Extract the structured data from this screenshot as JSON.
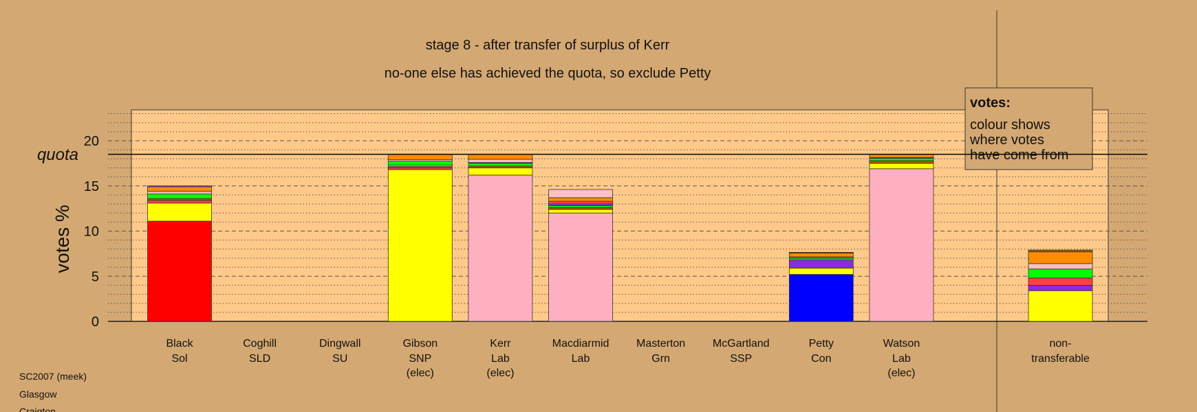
{
  "page": {
    "background": "#D4A872",
    "plot_background": "#FFC98A"
  },
  "footer": {
    "line1": "SC2007 (meek)",
    "line2": "Glasgow",
    "line3": "Craigton"
  },
  "legend": {
    "title": "votes:",
    "line1": "colour shows",
    "line2": "where votes",
    "line3": "have come from"
  },
  "chart_data": {
    "type": "bar",
    "stacked": true,
    "title": "stage 8 - after transfer of surplus of Kerr",
    "subtitle": "no-one else has achieved the quota, so exclude Petty",
    "ylabel": "votes %",
    "ylim": [
      0,
      23.5
    ],
    "yticks": [
      0,
      5,
      10,
      15,
      20
    ],
    "quota": 18.5,
    "quota_label": "quota",
    "colors": {
      "Sol": "#FF0000",
      "SNP": "#FFFF00",
      "Lab": "#FFB0C0",
      "Con": "#0000FF",
      "SLD": "#FF8C00",
      "SSP": "#FF4040",
      "Grn": "#00FF00",
      "SU": "#800080",
      "Other": "#A06000",
      "Misc": "#8A2BE2",
      "Pale": "#FFC0C0"
    },
    "categories": [
      {
        "name": "Black",
        "party": "Sol",
        "elected": "",
        "segments": [
          {
            "source": "Sol",
            "value": 11.1
          },
          {
            "source": "SNP",
            "value": 2.0
          },
          {
            "source": "SSP",
            "value": 0.3
          },
          {
            "source": "Other",
            "value": 0.2
          },
          {
            "source": "Grn",
            "value": 0.5
          },
          {
            "source": "Lab",
            "value": 0.3
          },
          {
            "source": "SLD",
            "value": 0.5
          },
          {
            "source": "Misc",
            "value": 0.1
          }
        ]
      },
      {
        "name": "Coghill",
        "party": "SLD",
        "elected": "",
        "segments": []
      },
      {
        "name": "Dingwall",
        "party": "SU",
        "elected": "",
        "segments": []
      },
      {
        "name": "Gibson",
        "party": "SNP",
        "elected": "(elec)",
        "segments": [
          {
            "source": "SNP",
            "value": 16.8
          },
          {
            "source": "SSP",
            "value": 0.2
          },
          {
            "source": "Other",
            "value": 0.15
          },
          {
            "source": "Lab",
            "value": 0.15
          },
          {
            "source": "Grn",
            "value": 0.45
          },
          {
            "source": "Pale",
            "value": 0.15
          },
          {
            "source": "SLD",
            "value": 0.6
          }
        ]
      },
      {
        "name": "Kerr",
        "party": "Lab",
        "elected": "(elec)",
        "segments": [
          {
            "source": "Lab",
            "value": 16.2
          },
          {
            "source": "SNP",
            "value": 0.8
          },
          {
            "source": "Other",
            "value": 0.2
          },
          {
            "source": "Grn",
            "value": 0.3
          },
          {
            "source": "Misc",
            "value": 0.1
          },
          {
            "source": "Pale",
            "value": 0.35
          },
          {
            "source": "SLD",
            "value": 0.55
          }
        ]
      },
      {
        "name": "Macdiarmid",
        "party": "Lab",
        "elected": "",
        "segments": [
          {
            "source": "Lab",
            "value": 12.0
          },
          {
            "source": "SNP",
            "value": 0.4
          },
          {
            "source": "Other",
            "value": 0.2
          },
          {
            "source": "Grn",
            "value": 0.2
          },
          {
            "source": "Misc",
            "value": 0.2
          },
          {
            "source": "SSP",
            "value": 0.3
          },
          {
            "source": "SLD",
            "value": 0.4
          },
          {
            "source": "Pale",
            "value": 0.9
          }
        ]
      },
      {
        "name": "Masterton",
        "party": "Grn",
        "elected": "",
        "segments": []
      },
      {
        "name": "McGartland",
        "party": "SSP",
        "elected": "",
        "segments": []
      },
      {
        "name": "Petty",
        "party": "Con",
        "elected": "",
        "segments": [
          {
            "source": "Con",
            "value": 5.2
          },
          {
            "source": "SNP",
            "value": 0.7
          },
          {
            "source": "Misc",
            "value": 0.9
          },
          {
            "source": "Grn",
            "value": 0.2
          },
          {
            "source": "SSP",
            "value": 0.15
          },
          {
            "source": "SLD",
            "value": 0.4
          },
          {
            "source": "Other",
            "value": 0.1
          }
        ]
      },
      {
        "name": "Watson",
        "party": "Lab",
        "elected": "(elec)",
        "segments": [
          {
            "source": "Lab",
            "value": 16.9
          },
          {
            "source": "SNP",
            "value": 0.6
          },
          {
            "source": "Other",
            "value": 0.3
          },
          {
            "source": "Grn",
            "value": 0.25
          },
          {
            "source": "Misc",
            "value": 0.1
          },
          {
            "source": "SLD",
            "value": 0.35
          }
        ]
      }
    ],
    "nontransferable": {
      "name": "non-",
      "name2": "transferable",
      "segments": [
        {
          "source": "SNP",
          "value": 3.4
        },
        {
          "source": "Misc",
          "value": 0.6
        },
        {
          "source": "SSP",
          "value": 0.8
        },
        {
          "source": "Grn",
          "value": 1.0
        },
        {
          "source": "Pale",
          "value": 0.6
        },
        {
          "source": "SLD",
          "value": 1.3
        },
        {
          "source": "Other",
          "value": 0.2
        }
      ]
    }
  }
}
